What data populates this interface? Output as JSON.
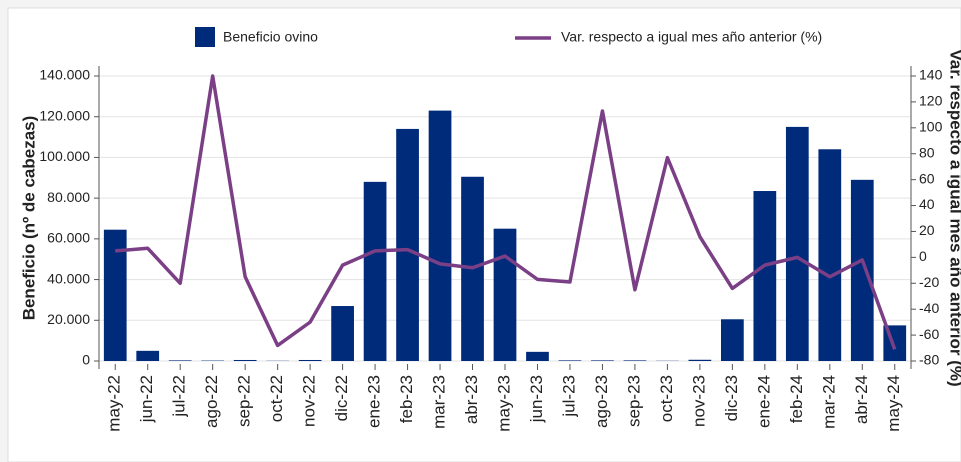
{
  "chart_data": {
    "type": "bar-line",
    "categories": [
      "may-22",
      "jun-22",
      "jul-22",
      "ago-22",
      "sep-22",
      "oct-22",
      "nov-22",
      "dic-22",
      "ene-23",
      "feb-23",
      "mar-23",
      "abr-23",
      "may-23",
      "jun-23",
      "jul-23",
      "ago-23",
      "sep-23",
      "oct-23",
      "nov-23",
      "dic-23",
      "ene-24",
      "feb-24",
      "mar-24",
      "abr-24",
      "may-24"
    ],
    "series": [
      {
        "name": "Beneficio ovino",
        "type": "bar",
        "color": "#002b7a",
        "axis": "y",
        "values": [
          64500,
          5000,
          300,
          200,
          500,
          100,
          500,
          27000,
          88000,
          114000,
          123000,
          90500,
          65000,
          4500,
          300,
          300,
          300,
          100,
          600,
          20500,
          83500,
          115000,
          104000,
          89000,
          17500
        ]
      },
      {
        "name": "Var. respecto a igual mes año anterior (%)",
        "type": "line",
        "color": "#7b3f86",
        "axis": "y2",
        "values": [
          5,
          7,
          -20,
          140,
          -15,
          -68,
          -50,
          -6,
          5,
          6,
          -5,
          -8,
          1,
          -17,
          -19,
          113,
          -25,
          77,
          16,
          -24,
          -6,
          0,
          -15,
          -2,
          -71
        ]
      }
    ],
    "ylabel": "Beneficio (nº de cabezas)",
    "y2label": "Var. respecto a igual mes año anterior (%)",
    "ylim": [
      0,
      140000
    ],
    "yticks": [
      0,
      {
        "value": 20000,
        "label": "20.000"
      },
      {
        "value": 40000,
        "label": "40.000"
      },
      {
        "value": 60000,
        "label": "60.000"
      },
      {
        "value": 80000,
        "label": "80.000"
      },
      {
        "value": 100000,
        "label": "100.000"
      },
      {
        "value": 120000,
        "label": "120.000"
      },
      {
        "value": 140000,
        "label": "140.000"
      }
    ],
    "y2lim": [
      -80,
      140
    ],
    "y2ticks": [
      -80,
      -60,
      -40,
      -20,
      0,
      20,
      40,
      60,
      80,
      100,
      120,
      140
    ],
    "grid": true,
    "legend": "top"
  }
}
